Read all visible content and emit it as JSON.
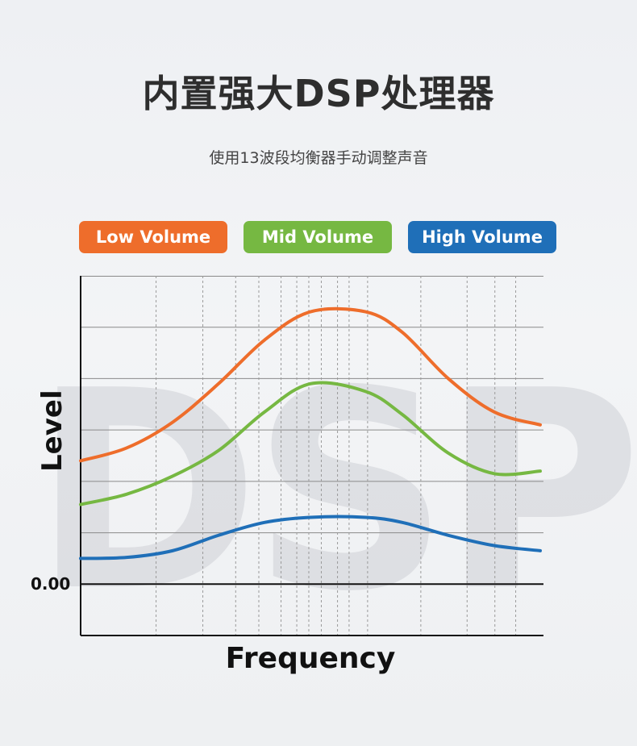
{
  "header": {
    "title": "内置强大DSP处理器",
    "subtitle": "使用13波段均衡器手动调整声音"
  },
  "background_text": "DSP",
  "chart_data": {
    "type": "line",
    "title": "",
    "xlabel": "Frequency",
    "ylabel": "Level",
    "y_tick_labels": [
      "0.00"
    ],
    "ylim": [
      -1,
      6
    ],
    "xlim": [
      0,
      1
    ],
    "x_scale": "log",
    "grid": true,
    "legend_placement": "top",
    "series": [
      {
        "name": "Low Volume",
        "color": "#ee6d2b",
        "x": [
          0.0,
          0.1,
          0.2,
          0.3,
          0.4,
          0.5,
          0.62,
          0.7,
          0.8,
          0.9,
          1.0
        ],
        "y": [
          2.4,
          2.65,
          3.15,
          3.9,
          4.75,
          5.3,
          5.3,
          4.9,
          4.0,
          3.35,
          3.1
        ]
      },
      {
        "name": "Mid Volume",
        "color": "#76b842",
        "x": [
          0.0,
          0.1,
          0.2,
          0.3,
          0.4,
          0.5,
          0.62,
          0.7,
          0.8,
          0.9,
          1.0
        ],
        "y": [
          1.55,
          1.75,
          2.1,
          2.6,
          3.35,
          3.9,
          3.75,
          3.3,
          2.55,
          2.15,
          2.2
        ]
      },
      {
        "name": "High Volume",
        "color": "#1f6fb8",
        "x": [
          0.0,
          0.1,
          0.2,
          0.3,
          0.4,
          0.5,
          0.62,
          0.7,
          0.8,
          0.9,
          1.0
        ],
        "y": [
          0.5,
          0.52,
          0.65,
          0.95,
          1.2,
          1.3,
          1.3,
          1.2,
          0.95,
          0.75,
          0.65
        ]
      }
    ]
  }
}
